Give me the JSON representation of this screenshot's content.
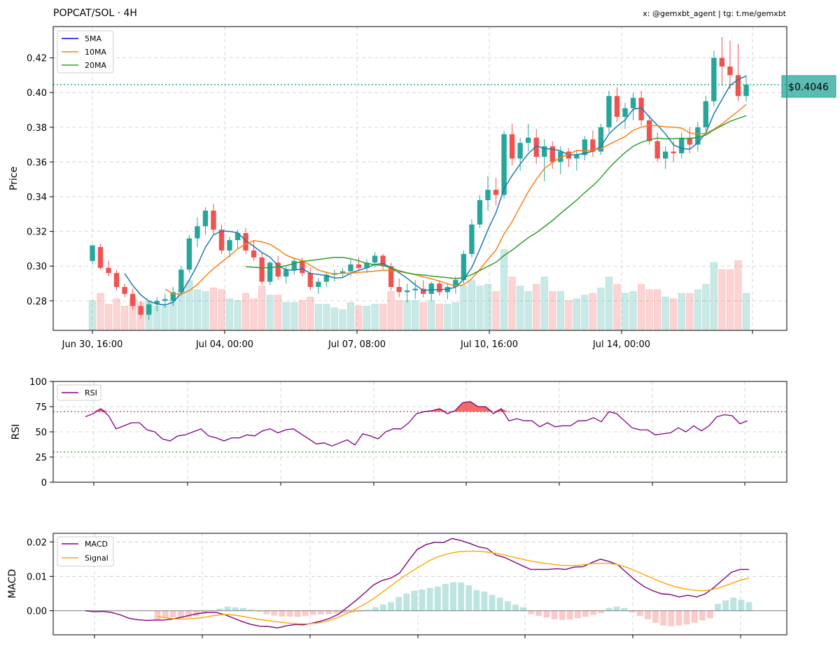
{
  "header": {
    "title": "POPCAT/SOL · 4H",
    "credit": "x: @gemxbt_agent | tg: t.me/gemxbt"
  },
  "colors": {
    "up": "#26a69a",
    "down": "#ef5350",
    "ma5": "#1f77b4",
    "ma10": "#ff7f0e",
    "ma20": "#2ca02c",
    "rsi": "#800080",
    "macd": "#800080",
    "signal": "#ffa500",
    "price_line": "#26a69a"
  },
  "chart_data": [
    {
      "type": "candlestick",
      "ylabel": "Price",
      "ylim": [
        0.263,
        0.438
      ],
      "yticks": [
        "0.28",
        "0.30",
        "0.32",
        "0.34",
        "0.36",
        "0.38",
        "0.40",
        "0.42"
      ],
      "xticks": [
        "Jun 30, 16:00",
        "Jul 04, 00:00",
        "Jul 07, 08:00",
        "Jul 10, 16:00",
        "Jul 14, 00:00"
      ],
      "legend": [
        "5MA",
        "10MA",
        "20MA"
      ],
      "legend_position": "top-left",
      "current_price": 0.4046,
      "current_price_label": "$0.4046",
      "grid": true,
      "candles": [
        [
          0.303,
          0.312,
          0.301,
          0.312
        ],
        [
          0.311,
          0.313,
          0.298,
          0.299
        ],
        [
          0.299,
          0.303,
          0.294,
          0.296
        ],
        [
          0.296,
          0.298,
          0.286,
          0.288
        ],
        [
          0.288,
          0.29,
          0.282,
          0.284
        ],
        [
          0.284,
          0.287,
          0.275,
          0.277
        ],
        [
          0.277,
          0.28,
          0.27,
          0.272
        ],
        [
          0.272,
          0.28,
          0.269,
          0.278
        ],
        [
          0.278,
          0.282,
          0.274,
          0.28
        ],
        [
          0.28,
          0.284,
          0.276,
          0.281
        ],
        [
          0.28,
          0.288,
          0.277,
          0.285
        ],
        [
          0.285,
          0.3,
          0.283,
          0.298
        ],
        [
          0.298,
          0.318,
          0.296,
          0.316
        ],
        [
          0.316,
          0.328,
          0.311,
          0.323
        ],
        [
          0.323,
          0.334,
          0.318,
          0.332
        ],
        [
          0.332,
          0.336,
          0.318,
          0.321
        ],
        [
          0.321,
          0.324,
          0.307,
          0.309
        ],
        [
          0.309,
          0.317,
          0.305,
          0.315
        ],
        [
          0.315,
          0.321,
          0.31,
          0.319
        ],
        [
          0.319,
          0.322,
          0.307,
          0.309
        ],
        [
          0.309,
          0.315,
          0.303,
          0.305
        ],
        [
          0.305,
          0.308,
          0.289,
          0.291
        ],
        [
          0.291,
          0.303,
          0.289,
          0.302
        ],
        [
          0.302,
          0.306,
          0.292,
          0.294
        ],
        [
          0.294,
          0.3,
          0.29,
          0.298
        ],
        [
          0.298,
          0.305,
          0.295,
          0.303
        ],
        [
          0.303,
          0.305,
          0.294,
          0.296
        ],
        [
          0.296,
          0.299,
          0.286,
          0.288
        ],
        [
          0.288,
          0.293,
          0.284,
          0.291
        ],
        [
          0.291,
          0.297,
          0.288,
          0.295
        ],
        [
          0.295,
          0.298,
          0.291,
          0.296
        ],
        [
          0.296,
          0.299,
          0.293,
          0.297
        ],
        [
          0.297,
          0.304,
          0.294,
          0.301
        ],
        [
          0.301,
          0.305,
          0.297,
          0.299
        ],
        [
          0.299,
          0.304,
          0.296,
          0.302
        ],
        [
          0.302,
          0.308,
          0.299,
          0.306
        ],
        [
          0.306,
          0.307,
          0.298,
          0.3
        ],
        [
          0.3,
          0.302,
          0.286,
          0.288
        ],
        [
          0.288,
          0.293,
          0.282,
          0.285
        ],
        [
          0.285,
          0.29,
          0.279,
          0.286
        ],
        [
          0.286,
          0.292,
          0.281,
          0.287
        ],
        [
          0.287,
          0.292,
          0.282,
          0.284
        ],
        [
          0.284,
          0.291,
          0.28,
          0.29
        ],
        [
          0.29,
          0.292,
          0.283,
          0.285
        ],
        [
          0.285,
          0.29,
          0.281,
          0.288
        ],
        [
          0.288,
          0.294,
          0.284,
          0.292
        ],
        [
          0.292,
          0.309,
          0.29,
          0.307
        ],
        [
          0.307,
          0.327,
          0.305,
          0.324
        ],
        [
          0.324,
          0.341,
          0.322,
          0.338
        ],
        [
          0.338,
          0.352,
          0.332,
          0.344
        ],
        [
          0.344,
          0.351,
          0.335,
          0.341
        ],
        [
          0.341,
          0.378,
          0.339,
          0.376
        ],
        [
          0.376,
          0.382,
          0.358,
          0.362
        ],
        [
          0.362,
          0.374,
          0.355,
          0.371
        ],
        [
          0.371,
          0.382,
          0.366,
          0.374
        ],
        [
          0.374,
          0.379,
          0.359,
          0.363
        ],
        [
          0.363,
          0.373,
          0.349,
          0.369
        ],
        [
          0.369,
          0.372,
          0.356,
          0.36
        ],
        [
          0.36,
          0.369,
          0.353,
          0.366
        ],
        [
          0.366,
          0.368,
          0.357,
          0.362
        ],
        [
          0.362,
          0.367,
          0.355,
          0.364
        ],
        [
          0.364,
          0.375,
          0.361,
          0.373
        ],
        [
          0.373,
          0.378,
          0.363,
          0.366
        ],
        [
          0.366,
          0.382,
          0.364,
          0.38
        ],
        [
          0.38,
          0.401,
          0.377,
          0.398
        ],
        [
          0.398,
          0.403,
          0.383,
          0.386
        ],
        [
          0.386,
          0.394,
          0.379,
          0.391
        ],
        [
          0.391,
          0.4,
          0.384,
          0.397
        ],
        [
          0.397,
          0.401,
          0.381,
          0.384
        ],
        [
          0.384,
          0.387,
          0.37,
          0.372
        ],
        [
          0.372,
          0.377,
          0.36,
          0.362
        ],
        [
          0.362,
          0.369,
          0.356,
          0.366
        ],
        [
          0.366,
          0.372,
          0.36,
          0.365
        ],
        [
          0.365,
          0.377,
          0.362,
          0.374
        ],
        [
          0.374,
          0.38,
          0.365,
          0.37
        ],
        [
          0.37,
          0.383,
          0.366,
          0.38
        ],
        [
          0.38,
          0.398,
          0.378,
          0.395
        ],
        [
          0.395,
          0.424,
          0.392,
          0.42
        ],
        [
          0.42,
          0.432,
          0.404,
          0.415
        ],
        [
          0.415,
          0.43,
          0.402,
          0.41
        ],
        [
          0.41,
          0.428,
          0.395,
          0.398
        ],
        [
          0.398,
          0.41,
          0.395,
          0.4046
        ]
      ]
    },
    {
      "type": "line",
      "ylabel": "RSI",
      "ylim": [
        0,
        100
      ],
      "yticks": [
        "0",
        "25",
        "50",
        "75",
        "100"
      ],
      "legend": [
        "RSI"
      ],
      "overbought": 70,
      "oversold": 30,
      "grid": true,
      "series": [
        {
          "name": "RSI",
          "values": [
            65,
            68,
            73,
            66,
            53,
            56,
            59,
            59,
            52,
            50,
            43,
            41,
            46,
            47,
            50,
            53,
            46,
            44,
            41,
            44,
            44,
            47,
            46,
            51,
            53,
            49,
            52,
            53,
            48,
            43,
            38,
            39,
            36,
            39,
            42,
            37,
            48,
            46,
            43,
            50,
            53,
            53,
            59,
            68,
            70,
            71,
            73,
            68,
            71,
            79,
            80,
            75,
            75,
            68,
            73,
            61,
            63,
            61,
            61,
            55,
            59,
            55,
            56,
            56,
            61,
            61,
            64,
            60,
            70,
            68,
            61,
            54,
            52,
            52,
            47,
            48,
            49,
            54,
            50,
            56,
            51,
            56,
            65,
            67,
            66,
            58,
            61
          ]
        }
      ]
    },
    {
      "type": "line",
      "ylabel": "MACD",
      "ylim": [
        -0.007,
        0.0225
      ],
      "yticks": [
        "0.00",
        "0.01",
        "0.02"
      ],
      "legend": [
        "MACD",
        "Signal"
      ],
      "legend_position": "top-left",
      "grid": true,
      "series": [
        {
          "name": "MACD",
          "values": [
            0.0,
            -0.0003,
            -0.0002,
            -0.0005,
            -0.0012,
            -0.0022,
            -0.0026,
            -0.0028,
            -0.0027,
            -0.0027,
            -0.0024,
            -0.0019,
            -0.0013,
            -0.0008,
            -0.0005,
            -0.0005,
            -0.0012,
            -0.0022,
            -0.0032,
            -0.004,
            -0.0045,
            -0.0046,
            -0.005,
            -0.0044,
            -0.004,
            -0.0041,
            -0.0036,
            -0.003,
            -0.0022,
            -0.001,
            0.001,
            0.003,
            0.0052,
            0.0075,
            0.0088,
            0.0095,
            0.011,
            0.0145,
            0.0178,
            0.0192,
            0.0199,
            0.0198,
            0.021,
            0.0204,
            0.0196,
            0.0186,
            0.0181,
            0.0162,
            0.0155,
            0.0143,
            0.0131,
            0.012,
            0.012,
            0.012,
            0.0122,
            0.012,
            0.0127,
            0.0128,
            0.014,
            0.015,
            0.0143,
            0.0133,
            0.011,
            0.0088,
            0.007,
            0.0058,
            0.0049,
            0.0047,
            0.004,
            0.0045,
            0.004,
            0.0049,
            0.0068,
            0.009,
            0.0112,
            0.012,
            0.012
          ]
        },
        {
          "name": "Signal",
          "values": [
            -0.0017,
            -0.0021,
            -0.0024,
            -0.0024,
            -0.0022,
            -0.0019,
            -0.0014,
            -0.0011,
            -0.0012,
            -0.0016,
            -0.0021,
            -0.0026,
            -0.003,
            -0.0033,
            -0.0036,
            -0.0038,
            -0.0038,
            -0.0036,
            -0.0031,
            -0.0022,
            -0.001,
            0.0003,
            0.0018,
            0.0035,
            0.0055,
            0.0075,
            0.0095,
            0.0113,
            0.013,
            0.0146,
            0.0158,
            0.0166,
            0.0171,
            0.0173,
            0.0173,
            0.0171,
            0.0167,
            0.0162,
            0.0155,
            0.0149,
            0.0143,
            0.0139,
            0.0135,
            0.0132,
            0.0131,
            0.0132,
            0.0136,
            0.0138,
            0.0138,
            0.0134,
            0.0126,
            0.0115,
            0.0103,
            0.0091,
            0.008,
            0.0071,
            0.0064,
            0.006,
            0.0058,
            0.0061,
            0.0068,
            0.0078,
            0.0088,
            0.0095
          ]
        }
      ],
      "histogram": [
        -0.0027,
        -0.0022,
        -0.0019,
        -0.0021,
        -0.0019,
        -0.0016,
        -0.0008,
        -0.0002,
        0.0006,
        0.0012,
        0.001,
        0.0008,
        0.0003,
        -0.0003,
        -0.001,
        -0.0014,
        -0.0017,
        -0.0017,
        -0.0018,
        -0.0015,
        -0.0012,
        -0.0011,
        -0.001,
        -0.0008,
        -0.0007,
        -0.0006,
        -0.0003,
        0.0003,
        0.001,
        0.0018,
        0.0025,
        0.004,
        0.005,
        0.0058,
        0.0062,
        0.0066,
        0.007,
        0.0078,
        0.0083,
        0.0082,
        0.0074,
        0.006,
        0.0056,
        0.0046,
        0.0038,
        0.0028,
        0.0018,
        0.001,
        -0.001,
        -0.0015,
        -0.002,
        -0.0025,
        -0.0027,
        -0.0026,
        -0.0022,
        -0.0018,
        -0.0012,
        -0.0007,
        0.0008,
        0.0012,
        0.0008,
        -0.0005,
        -0.0015,
        -0.0025,
        -0.0035,
        -0.0043,
        -0.0045,
        -0.0043,
        -0.004,
        -0.0035,
        -0.0028,
        -0.0022,
        0.002,
        0.003,
        0.0038,
        0.0032,
        0.0025
      ],
      "xticks": [
        "",
        "",
        "",
        "",
        "",
        "",
        ""
      ]
    }
  ]
}
